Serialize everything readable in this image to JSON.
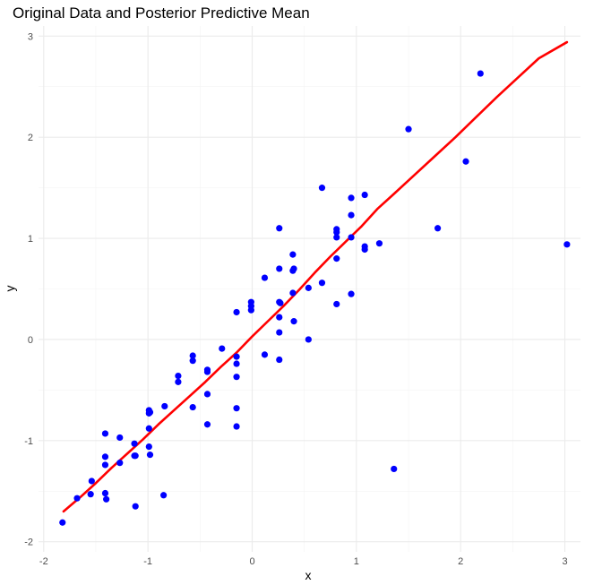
{
  "chart_data": {
    "type": "scatter",
    "title": "Original Data and Posterior Predictive Mean",
    "xlabel": "x",
    "ylabel": "y",
    "xlim": [
      -2.05,
      3.15
    ],
    "ylim": [
      -2.1,
      3.1
    ],
    "x_ticks": [
      -2,
      -1,
      0,
      1,
      2,
      3
    ],
    "y_ticks": [
      -2,
      -1,
      0,
      1,
      2,
      3
    ],
    "x_tick_labels": [
      "-2",
      "-1",
      "0",
      "1",
      "2",
      "3"
    ],
    "y_tick_labels": [
      "-2",
      "-1",
      "0",
      "1",
      "2",
      "3"
    ],
    "grid": true,
    "point_color": "#0000ff",
    "line_color": "#ff0000",
    "series": [
      {
        "kind": "points",
        "x": [
          -1.82,
          -1.68,
          -1.55,
          -1.54,
          -1.41,
          -1.41,
          -1.41,
          -1.41,
          -1.4,
          -1.27,
          -1.27,
          -1.13,
          -1.13,
          -1.12,
          -1.12,
          -0.99,
          -0.99,
          -0.99,
          -0.99,
          -0.98,
          -0.98,
          -0.85,
          -0.84,
          -0.71,
          -0.71,
          -0.57,
          -0.57,
          -0.57,
          -0.43,
          -0.43,
          -0.43,
          -0.43,
          -0.29,
          -0.15,
          -0.15,
          -0.15,
          -0.15,
          -0.15,
          -0.15,
          -0.01,
          -0.01,
          -0.01,
          0.12,
          0.12,
          0.26,
          0.26,
          0.26,
          0.26,
          0.26,
          0.26,
          0.27,
          0.39,
          0.39,
          0.39,
          0.4,
          0.4,
          0.54,
          0.54,
          0.67,
          0.67,
          0.81,
          0.81,
          0.81,
          0.81,
          0.81,
          0.95,
          0.95,
          0.95,
          0.95,
          1.08,
          1.08,
          1.08,
          1.22,
          1.36,
          1.5,
          1.78,
          2.05,
          2.19,
          3.02
        ],
        "y": [
          -1.81,
          -1.57,
          -1.53,
          -1.4,
          -0.93,
          -1.16,
          -1.24,
          -1.52,
          -1.58,
          -0.97,
          -1.22,
          -1.03,
          -1.15,
          -1.15,
          -1.65,
          -0.7,
          -0.73,
          -0.88,
          -1.06,
          -1.14,
          -0.72,
          -1.54,
          -0.66,
          -0.36,
          -0.42,
          -0.16,
          -0.21,
          -0.67,
          -0.3,
          -0.32,
          -0.54,
          -0.84,
          -0.09,
          0.27,
          -0.17,
          -0.24,
          -0.37,
          -0.68,
          -0.86,
          0.37,
          0.33,
          0.29,
          0.61,
          -0.15,
          1.1,
          0.7,
          0.37,
          0.22,
          0.07,
          -0.2,
          0.36,
          0.84,
          0.68,
          0.46,
          0.7,
          0.18,
          0.51,
          0.0,
          1.5,
          0.56,
          1.09,
          1.06,
          1.01,
          0.8,
          0.35,
          1.4,
          1.23,
          1.01,
          0.45,
          1.43,
          0.92,
          0.89,
          0.95,
          -1.28,
          2.08,
          1.1,
          1.76,
          2.63,
          0.94
        ]
      },
      {
        "kind": "line",
        "x": [
          -1.81,
          -1.65,
          -1.5,
          -1.35,
          -1.2,
          -1.05,
          -0.9,
          -0.75,
          -0.6,
          -0.45,
          -0.3,
          -0.15,
          0.0,
          0.15,
          0.3,
          0.45,
          0.6,
          0.75,
          0.9,
          1.05,
          1.2,
          1.35,
          1.55,
          1.75,
          1.95,
          2.15,
          2.35,
          2.55,
          2.75,
          3.02
        ],
        "y": [
          -1.7,
          -1.56,
          -1.42,
          -1.27,
          -1.13,
          -0.99,
          -0.84,
          -0.7,
          -0.56,
          -0.42,
          -0.27,
          -0.13,
          0.03,
          0.18,
          0.33,
          0.49,
          0.66,
          0.82,
          0.97,
          1.12,
          1.29,
          1.43,
          1.62,
          1.81,
          2.0,
          2.2,
          2.4,
          2.59,
          2.78,
          2.94
        ]
      }
    ]
  }
}
